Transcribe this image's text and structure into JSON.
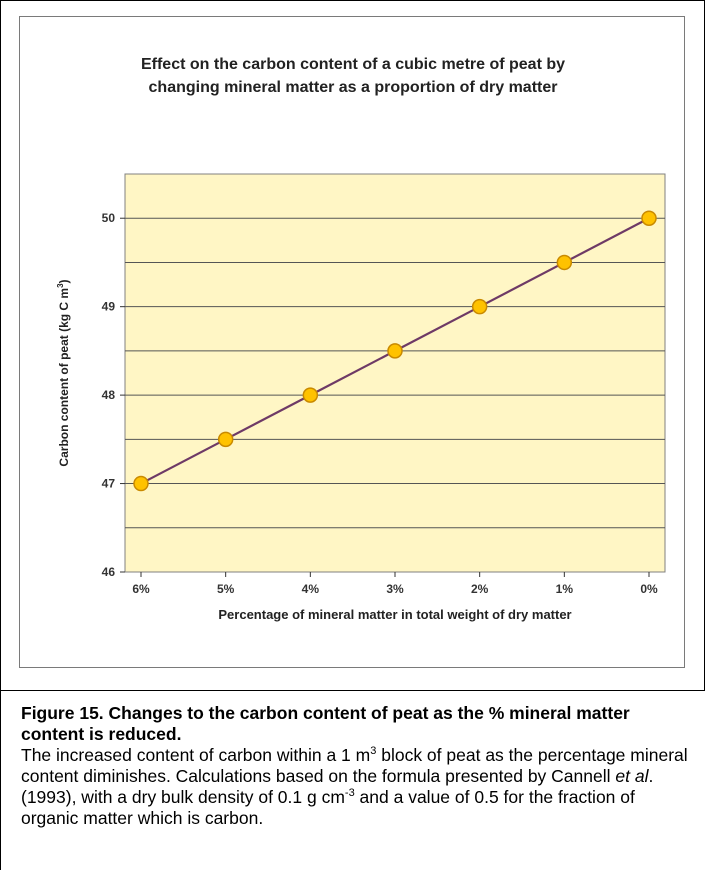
{
  "chart_data": {
    "type": "line",
    "title_line1": "Effect on the carbon content of a cubic metre of peat by",
    "title_line2": "changing mineral matter as a proportion of dry matter",
    "xlabel": "Percentage of mineral matter in total weight of dry matter",
    "ylabel_main": "Carbon content of peat (kg C m",
    "ylabel_sup": "3",
    "ylabel_close": ")",
    "categories": [
      "6%",
      "5%",
      "4%",
      "3%",
      "2%",
      "1%",
      "0%"
    ],
    "values": [
      47,
      47.5,
      48,
      48.5,
      49,
      49.5,
      50
    ],
    "ylim": [
      46,
      50.5
    ],
    "yticks": [
      46,
      47,
      48,
      49,
      50
    ],
    "grid": true,
    "legend": "none",
    "colors": {
      "plot_bg": "#fff6c5",
      "line": "#6e3a66",
      "marker_fill": "#ffc200",
      "marker_edge": "#c98a00",
      "grid": "#555555"
    }
  },
  "caption": {
    "title": "Figure 15.  Changes to the carbon content of peat as the % mineral matter content is reduced.",
    "body_part1": "The increased content of carbon within a 1 m",
    "body_sup1": "3",
    "body_part2": " block of peat as the percentage mineral content diminishes.  Calculations based on the formula presented by Cannell ",
    "body_italic": "et al",
    "body_part3": ". (1993), with a dry bulk density of 0.1 g cm",
    "body_sup2": "-3",
    "body_part4": " and a value of 0.5 for the fraction of organic matter which is carbon."
  }
}
